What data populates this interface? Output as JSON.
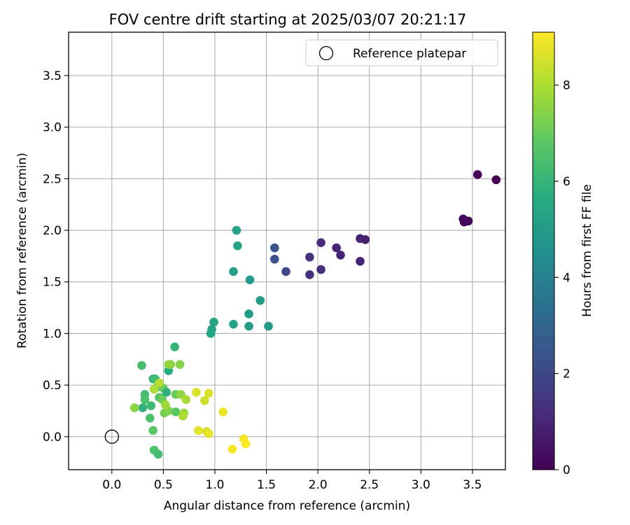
{
  "chart_data": {
    "type": "scatter",
    "title": "FOV centre drift starting at 2025/03/07 20:21:17",
    "xlabel": "Angular distance from reference (arcmin)",
    "ylabel": "Rotation from reference (arcmin)",
    "xlim": [
      -0.42,
      3.82
    ],
    "ylim": [
      -0.32,
      3.92
    ],
    "xticks": [
      "0.0",
      "0.5",
      "1.0",
      "1.5",
      "2.0",
      "2.5",
      "3.0",
      "3.5"
    ],
    "xtick_values": [
      0.0,
      0.5,
      1.0,
      1.5,
      2.0,
      2.5,
      3.0,
      3.5
    ],
    "yticks": [
      "0.0",
      "0.5",
      "1.0",
      "1.5",
      "2.0",
      "2.5",
      "3.0",
      "3.5"
    ],
    "ytick_values": [
      0.0,
      0.5,
      1.0,
      1.5,
      2.0,
      2.5,
      3.0,
      3.5
    ],
    "grid": true,
    "legend": {
      "label": "Reference platepar",
      "placement": "top-right"
    },
    "reference_point": {
      "x": 0.0,
      "y": 0.0
    },
    "colorbar": {
      "label": "Hours from first FF file",
      "range": [
        0,
        9.1
      ],
      "ticks": [
        "0",
        "2",
        "4",
        "6",
        "8"
      ],
      "tick_values": [
        0,
        2,
        4,
        6,
        8
      ],
      "colormap": "viridis"
    },
    "series": [
      {
        "points": [
          {
            "x": 3.42,
            "y": 2.08,
            "c": 0.1
          },
          {
            "x": 3.46,
            "y": 2.09,
            "c": 0.15
          },
          {
            "x": 3.41,
            "y": 2.11,
            "c": 0.2
          },
          {
            "x": 3.55,
            "y": 2.54,
            "c": 0.05
          },
          {
            "x": 3.73,
            "y": 2.49,
            "c": 0.0
          },
          {
            "x": 2.41,
            "y": 1.92,
            "c": 0.9
          },
          {
            "x": 2.46,
            "y": 1.91,
            "c": 0.85
          },
          {
            "x": 2.41,
            "y": 1.7,
            "c": 0.9
          },
          {
            "x": 2.18,
            "y": 1.83,
            "c": 1.0
          },
          {
            "x": 2.22,
            "y": 1.76,
            "c": 0.95
          },
          {
            "x": 2.03,
            "y": 1.88,
            "c": 1.1
          },
          {
            "x": 2.03,
            "y": 1.62,
            "c": 1.2
          },
          {
            "x": 1.92,
            "y": 1.74,
            "c": 1.3
          },
          {
            "x": 1.92,
            "y": 1.57,
            "c": 1.25
          },
          {
            "x": 1.58,
            "y": 1.83,
            "c": 2.3
          },
          {
            "x": 1.58,
            "y": 1.72,
            "c": 2.2
          },
          {
            "x": 1.69,
            "y": 1.6,
            "c": 2.0
          },
          {
            "x": 1.21,
            "y": 2.0,
            "c": 5.2
          },
          {
            "x": 1.22,
            "y": 1.85,
            "c": 5.3
          },
          {
            "x": 1.18,
            "y": 1.6,
            "c": 5.2
          },
          {
            "x": 1.34,
            "y": 1.52,
            "c": 5.0
          },
          {
            "x": 1.44,
            "y": 1.32,
            "c": 5.0
          },
          {
            "x": 1.33,
            "y": 1.19,
            "c": 5.0
          },
          {
            "x": 1.18,
            "y": 1.09,
            "c": 5.3
          },
          {
            "x": 1.33,
            "y": 1.07,
            "c": 5.1
          },
          {
            "x": 1.52,
            "y": 1.07,
            "c": 4.9
          },
          {
            "x": 0.99,
            "y": 1.11,
            "c": 5.4
          },
          {
            "x": 0.97,
            "y": 1.04,
            "c": 5.3
          },
          {
            "x": 0.96,
            "y": 1.0,
            "c": 5.4
          },
          {
            "x": 0.61,
            "y": 0.87,
            "c": 6.0
          },
          {
            "x": 0.55,
            "y": 0.64,
            "c": 5.6
          },
          {
            "x": 0.29,
            "y": 0.69,
            "c": 6.4
          },
          {
            "x": 0.3,
            "y": 0.28,
            "c": 5.9
          },
          {
            "x": 0.32,
            "y": 0.41,
            "c": 6.3
          },
          {
            "x": 0.32,
            "y": 0.36,
            "c": 6.5
          },
          {
            "x": 0.38,
            "y": 0.3,
            "c": 6.2
          },
          {
            "x": 0.37,
            "y": 0.18,
            "c": 6.5
          },
          {
            "x": 0.4,
            "y": 0.56,
            "c": 6.0
          },
          {
            "x": 0.42,
            "y": 0.56,
            "c": 6.2
          },
          {
            "x": 0.4,
            "y": 0.06,
            "c": 6.8
          },
          {
            "x": 0.41,
            "y": -0.13,
            "c": 6.5
          },
          {
            "x": 0.45,
            "y": -0.17,
            "c": 6.3
          },
          {
            "x": 0.44,
            "y": 0.48,
            "c": 6.4
          },
          {
            "x": 0.46,
            "y": 0.38,
            "c": 6.6
          },
          {
            "x": 0.5,
            "y": 0.47,
            "c": 7.0
          },
          {
            "x": 0.49,
            "y": 0.36,
            "c": 7.1
          },
          {
            "x": 0.53,
            "y": 0.43,
            "c": 5.9
          },
          {
            "x": 0.51,
            "y": 0.23,
            "c": 7.2
          },
          {
            "x": 0.55,
            "y": 0.25,
            "c": 7.4
          },
          {
            "x": 0.57,
            "y": 0.7,
            "c": 7.5
          },
          {
            "x": 0.55,
            "y": 0.7,
            "c": 7.6
          },
          {
            "x": 0.62,
            "y": 0.24,
            "c": 6.8
          },
          {
            "x": 0.62,
            "y": 0.41,
            "c": 7.0
          },
          {
            "x": 0.66,
            "y": 0.7,
            "c": 7.4
          },
          {
            "x": 0.67,
            "y": 0.41,
            "c": 7.6
          },
          {
            "x": 0.7,
            "y": 0.23,
            "c": 7.8
          },
          {
            "x": 0.69,
            "y": 0.2,
            "c": 8.0
          },
          {
            "x": 0.72,
            "y": 0.36,
            "c": 7.9
          },
          {
            "x": 0.22,
            "y": 0.28,
            "c": 7.5
          },
          {
            "x": 0.41,
            "y": 0.46,
            "c": 8.0
          },
          {
            "x": 0.46,
            "y": 0.52,
            "c": 8.1
          },
          {
            "x": 0.52,
            "y": 0.31,
            "c": 7.8
          },
          {
            "x": 0.82,
            "y": 0.43,
            "c": 8.6
          },
          {
            "x": 0.84,
            "y": 0.06,
            "c": 8.7
          },
          {
            "x": 0.9,
            "y": 0.35,
            "c": 8.4
          },
          {
            "x": 0.92,
            "y": 0.05,
            "c": 8.5
          },
          {
            "x": 0.94,
            "y": 0.42,
            "c": 8.6
          },
          {
            "x": 0.94,
            "y": 0.03,
            "c": 8.8
          },
          {
            "x": 1.08,
            "y": 0.24,
            "c": 8.9
          },
          {
            "x": 1.17,
            "y": -0.12,
            "c": 9.0
          },
          {
            "x": 1.28,
            "y": -0.02,
            "c": 9.0
          },
          {
            "x": 1.3,
            "y": -0.07,
            "c": 9.1
          }
        ]
      }
    ]
  }
}
